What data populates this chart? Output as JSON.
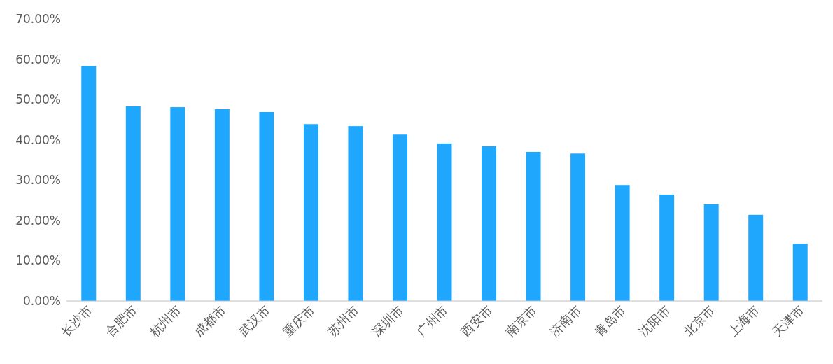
{
  "chart_data": {
    "type": "bar",
    "categories": [
      "长沙市",
      "合肥市",
      "杭州市",
      "成都市",
      "武汉市",
      "重庆市",
      "苏州市",
      "深圳市",
      "广州市",
      "西安市",
      "南京市",
      "济南市",
      "青岛市",
      "沈阳市",
      "北京市",
      "上海市",
      "天津市"
    ],
    "values": [
      58.3,
      48.3,
      48.1,
      47.6,
      46.9,
      43.9,
      43.4,
      41.3,
      39.1,
      38.4,
      37.0,
      36.6,
      28.8,
      26.4,
      24.0,
      21.4,
      14.2
    ],
    "color": "#1ea7fd",
    "ylim": [
      0,
      70
    ],
    "yticks": [
      {
        "value": 0,
        "label": "0.00%"
      },
      {
        "value": 10,
        "label": "10.00%"
      },
      {
        "value": 20,
        "label": "20.00%"
      },
      {
        "value": 30,
        "label": "30.00%"
      },
      {
        "value": 40,
        "label": "40.00%"
      },
      {
        "value": 50,
        "label": "50.00%"
      },
      {
        "value": 60,
        "label": "60.00%"
      },
      {
        "value": 70,
        "label": "70.00%"
      }
    ]
  }
}
